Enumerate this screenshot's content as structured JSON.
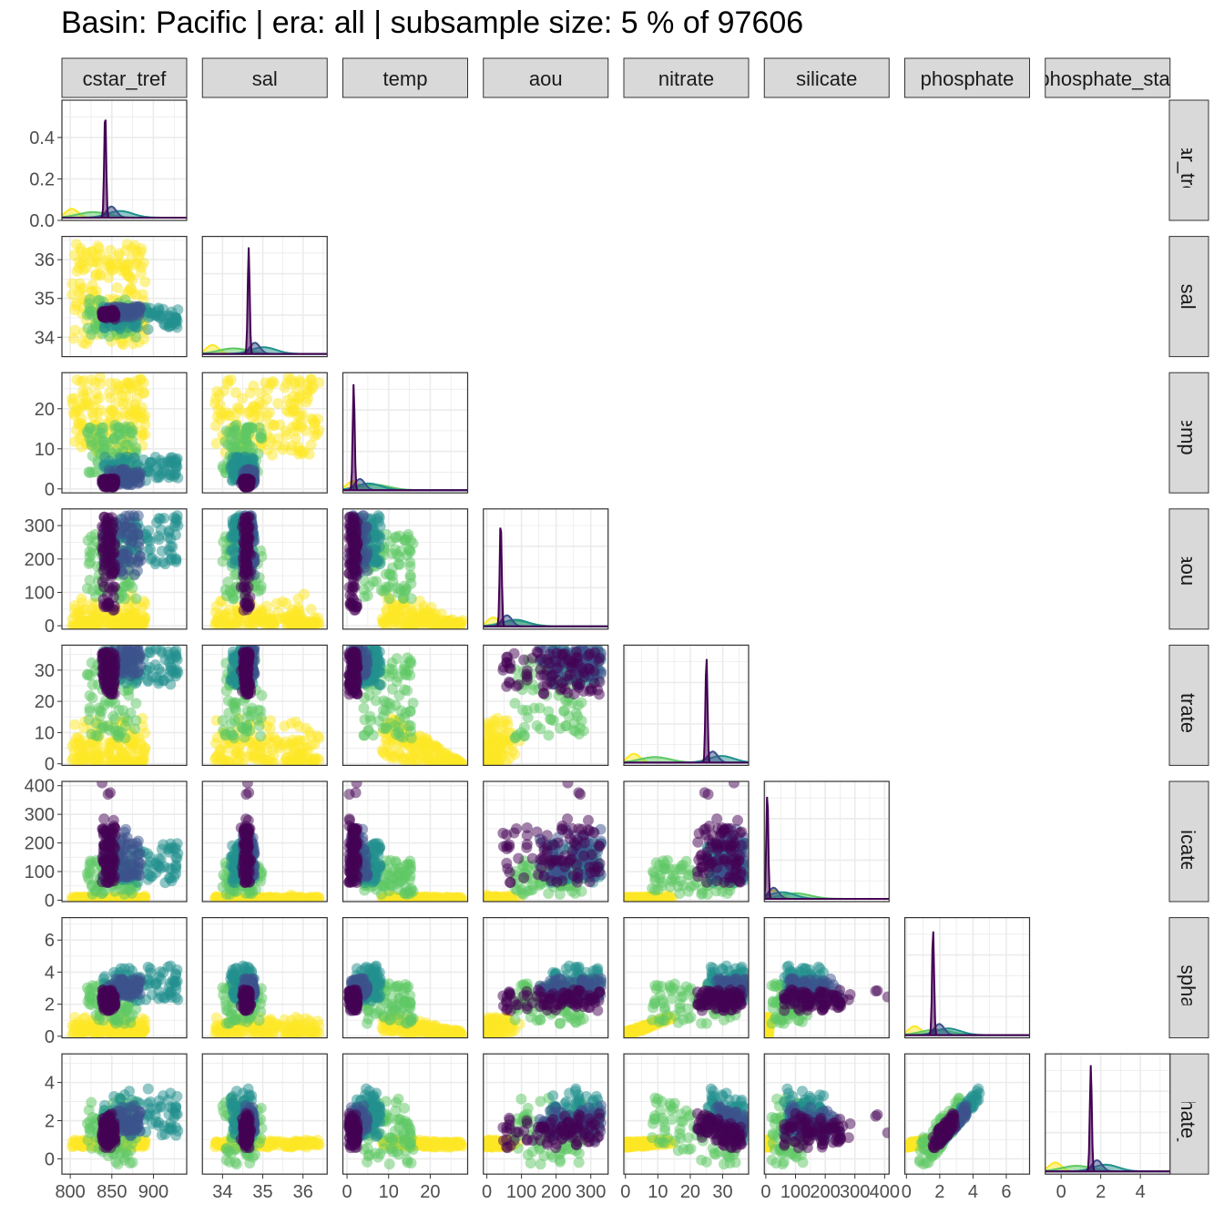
{
  "title": "Basin: Pacific | era: all | subsample size: 5 % of 97606",
  "colors": {
    "viridis": [
      "#440154",
      "#3b528b",
      "#21908d",
      "#5dc863",
      "#fde725"
    ],
    "strip_fill": "#d9d9d9",
    "grid": "#ebebeb"
  },
  "chart_data": {
    "type": "scatter",
    "layout": "pairs",
    "variables": [
      {
        "name": "cstar_tref",
        "strip_label": "cstar_tref",
        "range": [
          790,
          940
        ],
        "ticks": [
          {
            "value": 800,
            "label": "800"
          },
          {
            "value": 850,
            "label": "850"
          },
          {
            "value": 900,
            "label": "900"
          }
        ]
      },
      {
        "name": "sal",
        "strip_label": "sal",
        "range": [
          33.5,
          36.6
        ],
        "ticks": [
          {
            "value": 34,
            "label": "34"
          },
          {
            "value": 35,
            "label": "35"
          },
          {
            "value": 36,
            "label": "36"
          }
        ]
      },
      {
        "name": "temp",
        "strip_label": "temp",
        "range": [
          -1,
          29
        ],
        "ticks": [
          {
            "value": 0,
            "label": "0"
          },
          {
            "value": 10,
            "label": "10"
          },
          {
            "value": 20,
            "label": "20"
          }
        ]
      },
      {
        "name": "aou",
        "strip_label": "aou",
        "range": [
          -10,
          350
        ],
        "ticks": [
          {
            "value": 0,
            "label": "0"
          },
          {
            "value": 100,
            "label": "100"
          },
          {
            "value": 200,
            "label": "200"
          },
          {
            "value": 300,
            "label": "300"
          }
        ]
      },
      {
        "name": "nitrate",
        "strip_label": "nitrate",
        "range": [
          -0.5,
          38
        ],
        "ticks": [
          {
            "value": 0,
            "label": "0"
          },
          {
            "value": 10,
            "label": "10"
          },
          {
            "value": 20,
            "label": "20"
          },
          {
            "value": 30,
            "label": "30"
          }
        ]
      },
      {
        "name": "silicate",
        "strip_label": "silicate",
        "range": [
          -5,
          415
        ],
        "ticks": [
          {
            "value": 0,
            "label": "0"
          },
          {
            "value": 100,
            "label": "100"
          },
          {
            "value": 200,
            "label": "200"
          },
          {
            "value": 300,
            "label": "300"
          },
          {
            "value": 400,
            "label": "400"
          }
        ]
      },
      {
        "name": "phosphate",
        "strip_label": "phosphate",
        "range": [
          -0.1,
          7.4
        ],
        "ticks": [
          {
            "value": 0,
            "label": "0"
          },
          {
            "value": 2,
            "label": "2"
          },
          {
            "value": 4,
            "label": "4"
          },
          {
            "value": 6,
            "label": "6"
          }
        ]
      },
      {
        "name": "phosphate_star",
        "strip_label": "phosphate_star",
        "range": [
          -0.8,
          5.5
        ],
        "ticks": [
          {
            "value": 0,
            "label": "0"
          },
          {
            "value": 2,
            "label": "2"
          },
          {
            "value": 4,
            "label": "4"
          }
        ]
      }
    ],
    "diagonal_density_ticks": [
      {
        "value": 0.0,
        "label": "0.0"
      },
      {
        "value": 0.2,
        "label": "0.2"
      },
      {
        "value": 0.4,
        "label": "0.4"
      }
    ],
    "diagonal_density_range": [
      0,
      0.58
    ],
    "density_peaks": [
      {
        "var": "cstar_tref",
        "peak_x": 842,
        "peak_height": 0.55
      },
      {
        "var": "sal",
        "peak_x": 34.65
      },
      {
        "var": "temp",
        "peak_x": 1.6
      },
      {
        "var": "aou",
        "peak_x": 40
      },
      {
        "var": "nitrate",
        "peak_x": 25
      },
      {
        "var": "silicate",
        "peak_x": 5
      },
      {
        "var": "phosphate",
        "peak_x": 1.6
      },
      {
        "var": "phosphate_star",
        "peak_x": 1.5
      }
    ],
    "grid": true,
    "legend": "none",
    "point_alpha": 0.5,
    "color_by": "depth group (viridis, unlabelled)"
  }
}
